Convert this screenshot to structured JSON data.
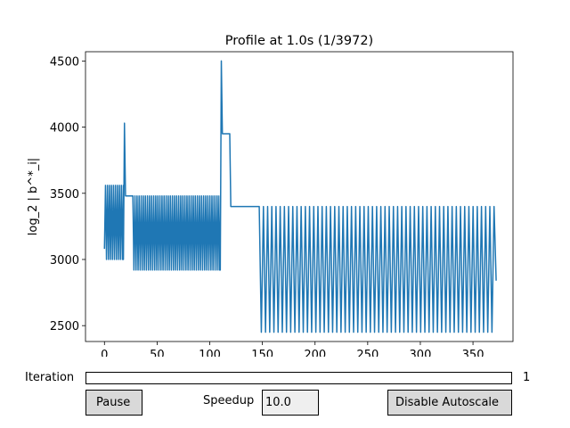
{
  "chart_data": {
    "type": "line",
    "title": "Profile at 1.0s (1/3972)",
    "xlabel": "",
    "ylabel": "log_2 | b^*_i|",
    "xlim": [
      -18,
      388
    ],
    "ylim": [
      2380,
      4570
    ],
    "xticks": [
      0,
      50,
      100,
      150,
      200,
      250,
      300,
      350
    ],
    "yticks": [
      2500,
      3000,
      3500,
      4000,
      4500
    ],
    "xtick_labels": [
      "0",
      "50",
      "100",
      "150",
      "200",
      "250",
      "300",
      "350"
    ],
    "ytick_labels": [
      "2500",
      "3000",
      "3500",
      "4000",
      "4500"
    ],
    "line_color": "#1f77b4",
    "series": [
      {
        "name": "profile",
        "segments": [
          {
            "from": 0,
            "to": 1,
            "type": "linear",
            "v0": 3080,
            "v1": 3560
          },
          {
            "from": 1,
            "to": 18,
            "type": "zigzag",
            "period": 2,
            "high": 3560,
            "low": 3000
          },
          {
            "from": 18,
            "to": 19,
            "type": "linear",
            "v0": 3000,
            "v1": 4030
          },
          {
            "from": 19,
            "to": 20,
            "type": "linear",
            "v0": 4030,
            "v1": 3480
          },
          {
            "from": 20,
            "to": 26,
            "type": "flat",
            "v0": 3480
          },
          {
            "from": 26,
            "to": 27,
            "type": "linear",
            "v0": 3480,
            "v1": 3480
          },
          {
            "from": 27,
            "to": 110,
            "type": "zigzag",
            "period": 2,
            "high": 3480,
            "low": 2920
          },
          {
            "from": 110,
            "to": 111,
            "type": "linear",
            "v0": 2920,
            "v1": 4500
          },
          {
            "from": 111,
            "to": 112,
            "type": "linear",
            "v0": 4500,
            "v1": 3950
          },
          {
            "from": 112,
            "to": 119,
            "type": "flat",
            "v0": 3950
          },
          {
            "from": 119,
            "to": 120,
            "type": "linear",
            "v0": 3950,
            "v1": 3400
          },
          {
            "from": 120,
            "to": 147,
            "type": "flat",
            "v0": 3400
          },
          {
            "from": 147,
            "to": 370,
            "type": "zigzag",
            "period": 4,
            "high": 3400,
            "low": 2450
          },
          {
            "from": 370,
            "to": 372,
            "type": "linear",
            "v0": 3400,
            "v1": 2840
          }
        ]
      }
    ]
  },
  "widgets": {
    "slider_label": "Iteration",
    "slider_value": "1",
    "slider_fraction": 0.0,
    "pause_label": "Pause",
    "speedup_label": "Speedup",
    "speedup_value": "10.0",
    "autoscale_label": "Disable Autoscale"
  }
}
